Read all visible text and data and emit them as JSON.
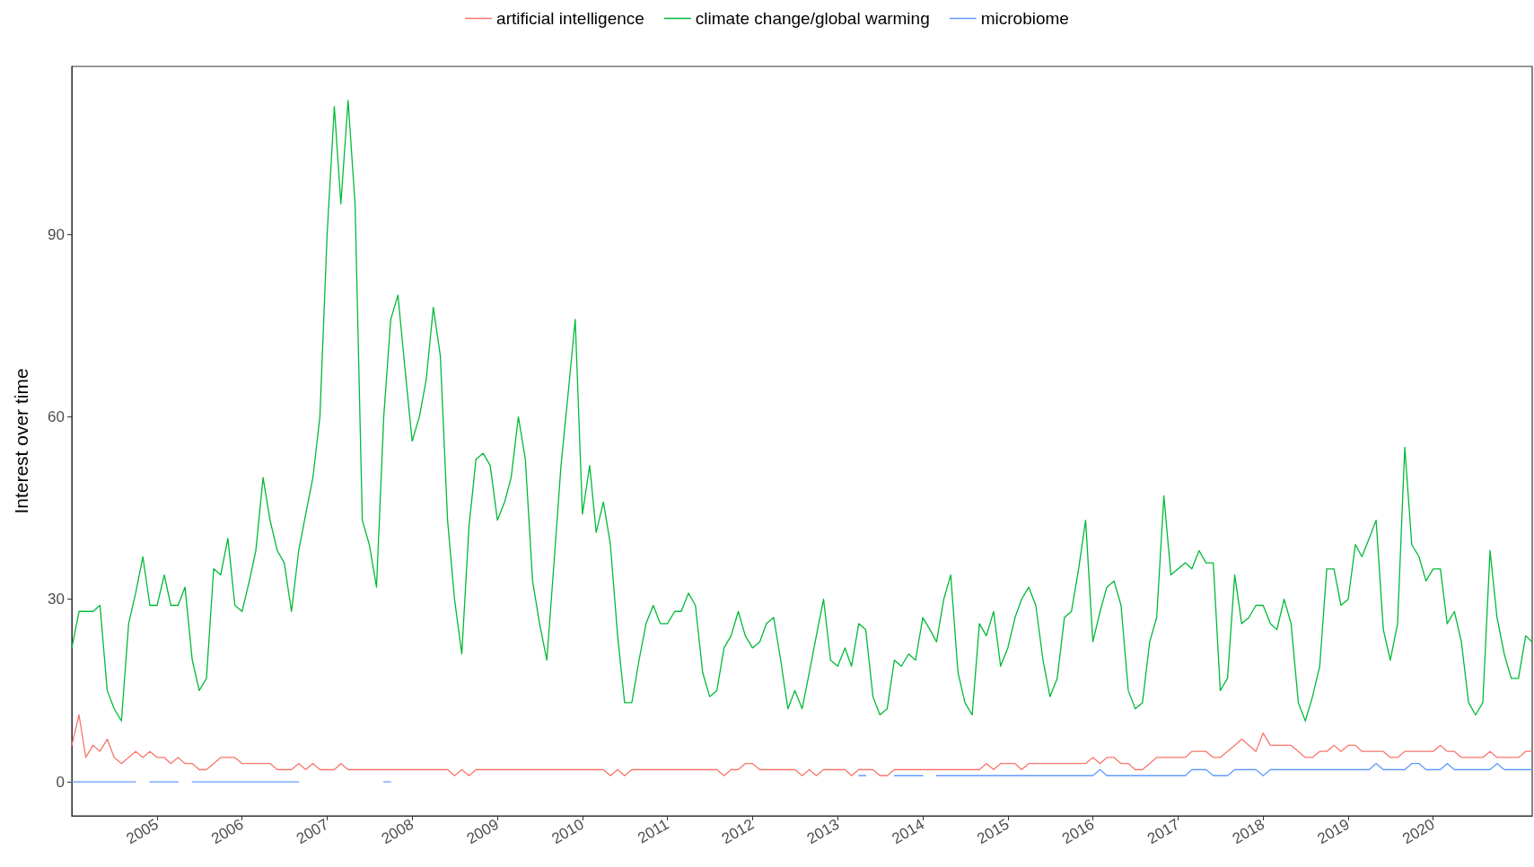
{
  "chart_data": {
    "type": "line",
    "ylabel": "Interest over time",
    "legend": "top",
    "grid": false,
    "marker": "none",
    "line_style": "solid",
    "xlim": [
      "2004-01",
      "2021-03"
    ],
    "ylim": [
      -5.6,
      117.6
    ],
    "yticks": [
      0,
      30,
      60,
      90
    ],
    "xticks": [
      {
        "value": "2005",
        "label": "2005"
      },
      {
        "value": "2006",
        "label": "2006"
      },
      {
        "value": "2007",
        "label": "2007"
      },
      {
        "value": "2008",
        "label": "2008"
      },
      {
        "value": "2009",
        "label": "2009"
      },
      {
        "value": "2010",
        "label": "2010"
      },
      {
        "value": "2011",
        "label": "2011"
      },
      {
        "value": "2012",
        "label": "2012"
      },
      {
        "value": "2013",
        "label": "2013"
      },
      {
        "value": "2014",
        "label": "2014"
      },
      {
        "value": "2015",
        "label": "2015"
      },
      {
        "value": "2016",
        "label": "2016"
      },
      {
        "value": "2017",
        "label": "2017"
      },
      {
        "value": "2018",
        "label": "2018"
      },
      {
        "value": "2019",
        "label": "2019"
      },
      {
        "value": "2020",
        "label": "2020"
      }
    ],
    "x": [
      "2004-01",
      "2004-02",
      "2004-03",
      "2004-04",
      "2004-05",
      "2004-06",
      "2004-07",
      "2004-08",
      "2004-09",
      "2004-10",
      "2004-11",
      "2004-12",
      "2005-01",
      "2005-02",
      "2005-03",
      "2005-04",
      "2005-05",
      "2005-06",
      "2005-07",
      "2005-08",
      "2005-09",
      "2005-10",
      "2005-11",
      "2005-12",
      "2006-01",
      "2006-02",
      "2006-03",
      "2006-04",
      "2006-05",
      "2006-06",
      "2006-07",
      "2006-08",
      "2006-09",
      "2006-10",
      "2006-11",
      "2006-12",
      "2007-01",
      "2007-02",
      "2007-03",
      "2007-04",
      "2007-05",
      "2007-06",
      "2007-07",
      "2007-08",
      "2007-09",
      "2007-10",
      "2007-11",
      "2007-12",
      "2008-01",
      "2008-02",
      "2008-03",
      "2008-04",
      "2008-05",
      "2008-06",
      "2008-07",
      "2008-08",
      "2008-09",
      "2008-10",
      "2008-11",
      "2008-12",
      "2009-01",
      "2009-02",
      "2009-03",
      "2009-04",
      "2009-05",
      "2009-06",
      "2009-07",
      "2009-08",
      "2009-09",
      "2009-10",
      "2009-11",
      "2009-12",
      "2010-01",
      "2010-02",
      "2010-03",
      "2010-04",
      "2010-05",
      "2010-06",
      "2010-07",
      "2010-08",
      "2010-09",
      "2010-10",
      "2010-11",
      "2010-12",
      "2011-01",
      "2011-02",
      "2011-03",
      "2011-04",
      "2011-05",
      "2011-06",
      "2011-07",
      "2011-08",
      "2011-09",
      "2011-10",
      "2011-11",
      "2011-12",
      "2012-01",
      "2012-02",
      "2012-03",
      "2012-04",
      "2012-05",
      "2012-06",
      "2012-07",
      "2012-08",
      "2012-09",
      "2012-10",
      "2012-11",
      "2012-12",
      "2013-01",
      "2013-02",
      "2013-03",
      "2013-04",
      "2013-05",
      "2013-06",
      "2013-07",
      "2013-08",
      "2013-09",
      "2013-10",
      "2013-11",
      "2013-12",
      "2014-01",
      "2014-02",
      "2014-03",
      "2014-04",
      "2014-05",
      "2014-06",
      "2014-07",
      "2014-08",
      "2014-09",
      "2014-10",
      "2014-11",
      "2014-12",
      "2015-01",
      "2015-02",
      "2015-03",
      "2015-04",
      "2015-05",
      "2015-06",
      "2015-07",
      "2015-08",
      "2015-09",
      "2015-10",
      "2015-11",
      "2015-12",
      "2016-01",
      "2016-02",
      "2016-03",
      "2016-04",
      "2016-05",
      "2016-06",
      "2016-07",
      "2016-08",
      "2016-09",
      "2016-10",
      "2016-11",
      "2016-12",
      "2017-01",
      "2017-02",
      "2017-03",
      "2017-04",
      "2017-05",
      "2017-06",
      "2017-07",
      "2017-08",
      "2017-09",
      "2017-10",
      "2017-11",
      "2017-12",
      "2018-01",
      "2018-02",
      "2018-03",
      "2018-04",
      "2018-05",
      "2018-06",
      "2018-07",
      "2018-08",
      "2018-09",
      "2018-10",
      "2018-11",
      "2018-12",
      "2019-01",
      "2019-02",
      "2019-03",
      "2019-04",
      "2019-05",
      "2019-06",
      "2019-07",
      "2019-08",
      "2019-09",
      "2019-10",
      "2019-11",
      "2019-12",
      "2020-01",
      "2020-02",
      "2020-03",
      "2020-04",
      "2020-05",
      "2020-06",
      "2020-07",
      "2020-08",
      "2020-09",
      "2020-10",
      "2020-11",
      "2020-12",
      "2021-01",
      "2021-02",
      "2021-03"
    ],
    "series": [
      {
        "name": "artificial intelligence",
        "color": "#f8766d",
        "values": [
          6,
          11,
          4,
          6,
          5,
          7,
          4,
          3,
          4,
          5,
          4,
          5,
          4,
          4,
          3,
          4,
          3,
          3,
          2,
          2,
          3,
          4,
          4,
          4,
          3,
          3,
          3,
          3,
          3,
          2,
          2,
          2,
          3,
          2,
          3,
          2,
          2,
          2,
          3,
          2,
          2,
          2,
          2,
          2,
          2,
          2,
          2,
          2,
          2,
          2,
          2,
          2,
          2,
          2,
          1,
          2,
          1,
          2,
          2,
          2,
          2,
          2,
          2,
          2,
          2,
          2,
          2,
          2,
          2,
          2,
          2,
          2,
          2,
          2,
          2,
          2,
          1,
          2,
          1,
          2,
          2,
          2,
          2,
          2,
          2,
          2,
          2,
          2,
          2,
          2,
          2,
          2,
          1,
          2,
          2,
          3,
          3,
          2,
          2,
          2,
          2,
          2,
          2,
          1,
          2,
          1,
          2,
          2,
          2,
          2,
          1,
          2,
          2,
          2,
          1,
          1,
          2,
          2,
          2,
          2,
          2,
          2,
          2,
          2,
          2,
          2,
          2,
          2,
          2,
          3,
          2,
          3,
          3,
          3,
          2,
          3,
          3,
          3,
          3,
          3,
          3,
          3,
          3,
          3,
          4,
          3,
          4,
          4,
          3,
          3,
          2,
          2,
          3,
          4,
          4,
          4,
          4,
          4,
          5,
          5,
          5,
          4,
          4,
          5,
          6,
          7,
          6,
          5,
          8,
          6,
          6,
          6,
          6,
          5,
          4,
          4,
          5,
          5,
          6,
          5,
          6,
          6,
          5,
          5,
          5,
          5,
          4,
          4,
          5,
          5,
          5,
          5,
          5,
          6,
          5,
          5,
          4,
          4,
          4,
          4,
          5,
          4,
          4,
          4,
          4,
          5,
          5
        ]
      },
      {
        "name": "climate change/global warming",
        "color": "#00ba38",
        "values": [
          22,
          28,
          28,
          28,
          29,
          15,
          12,
          10,
          26,
          31,
          37,
          29,
          29,
          34,
          29,
          29,
          32,
          20,
          15,
          17,
          35,
          34,
          40,
          29,
          28,
          33,
          38,
          50,
          43,
          38,
          36,
          28,
          38,
          44,
          50,
          60,
          90,
          111,
          95,
          112,
          95,
          43,
          39,
          32,
          60,
          76,
          80,
          68,
          56,
          60,
          66,
          78,
          70,
          43,
          30,
          21,
          42,
          53,
          54,
          52,
          43,
          46,
          50,
          60,
          53,
          33,
          26,
          20,
          36,
          52,
          64,
          76,
          44,
          52,
          41,
          46,
          39,
          24,
          13,
          13,
          20,
          26,
          29,
          26,
          26,
          28,
          28,
          31,
          29,
          18,
          14,
          15,
          22,
          24,
          28,
          24,
          22,
          23,
          26,
          27,
          20,
          12,
          15,
          12,
          18,
          24,
          30,
          20,
          19,
          22,
          19,
          26,
          25,
          14,
          11,
          12,
          20,
          19,
          21,
          20,
          27,
          25,
          23,
          30,
          34,
          18,
          13,
          11,
          26,
          24,
          28,
          19,
          22,
          27,
          30,
          32,
          29,
          20,
          14,
          17,
          27,
          28,
          35,
          43,
          23,
          28,
          32,
          33,
          29,
          15,
          12,
          13,
          23,
          27,
          47,
          34,
          35,
          36,
          35,
          38,
          36,
          36,
          15,
          17,
          34,
          26,
          27,
          29,
          29,
          26,
          25,
          30,
          26,
          13,
          10,
          14,
          19,
          35,
          35,
          29,
          30,
          39,
          37,
          40,
          43,
          25,
          20,
          26,
          55,
          39,
          37,
          33,
          35,
          35,
          26,
          28,
          23,
          13,
          11,
          13,
          38,
          27,
          21,
          17,
          17,
          24,
          23
        ]
      },
      {
        "name": "microbiome",
        "color": "#619cff",
        "values": [
          0,
          0,
          0,
          0,
          0,
          0,
          0,
          0,
          0,
          0,
          null,
          0,
          0,
          0,
          0,
          0,
          null,
          0,
          0,
          0,
          0,
          0,
          0,
          0,
          0,
          0,
          0,
          0,
          0,
          0,
          0,
          0,
          0,
          null,
          null,
          null,
          null,
          null,
          null,
          null,
          null,
          null,
          null,
          null,
          0,
          0,
          null,
          null,
          null,
          null,
          null,
          null,
          null,
          null,
          null,
          null,
          null,
          null,
          null,
          null,
          null,
          null,
          null,
          null,
          null,
          null,
          null,
          null,
          null,
          null,
          null,
          null,
          null,
          null,
          null,
          null,
          null,
          null,
          null,
          null,
          null,
          null,
          null,
          null,
          null,
          null,
          null,
          null,
          null,
          null,
          null,
          null,
          null,
          null,
          null,
          null,
          null,
          null,
          null,
          null,
          null,
          null,
          null,
          null,
          null,
          null,
          null,
          null,
          null,
          null,
          null,
          1,
          1,
          null,
          null,
          null,
          1,
          1,
          1,
          1,
          1,
          null,
          1,
          1,
          1,
          1,
          1,
          1,
          1,
          1,
          1,
          1,
          1,
          1,
          1,
          1,
          1,
          1,
          1,
          1,
          1,
          1,
          1,
          1,
          1,
          2,
          1,
          1,
          1,
          1,
          1,
          1,
          1,
          1,
          1,
          1,
          1,
          1,
          2,
          2,
          2,
          1,
          1,
          1,
          2,
          2,
          2,
          2,
          1,
          2,
          2,
          2,
          2,
          2,
          2,
          2,
          2,
          2,
          2,
          2,
          2,
          2,
          2,
          2,
          3,
          2,
          2,
          2,
          2,
          3,
          3,
          2,
          2,
          2,
          3,
          2,
          2,
          2,
          2,
          2,
          2,
          3,
          2,
          2,
          2,
          2,
          2
        ]
      }
    ]
  }
}
